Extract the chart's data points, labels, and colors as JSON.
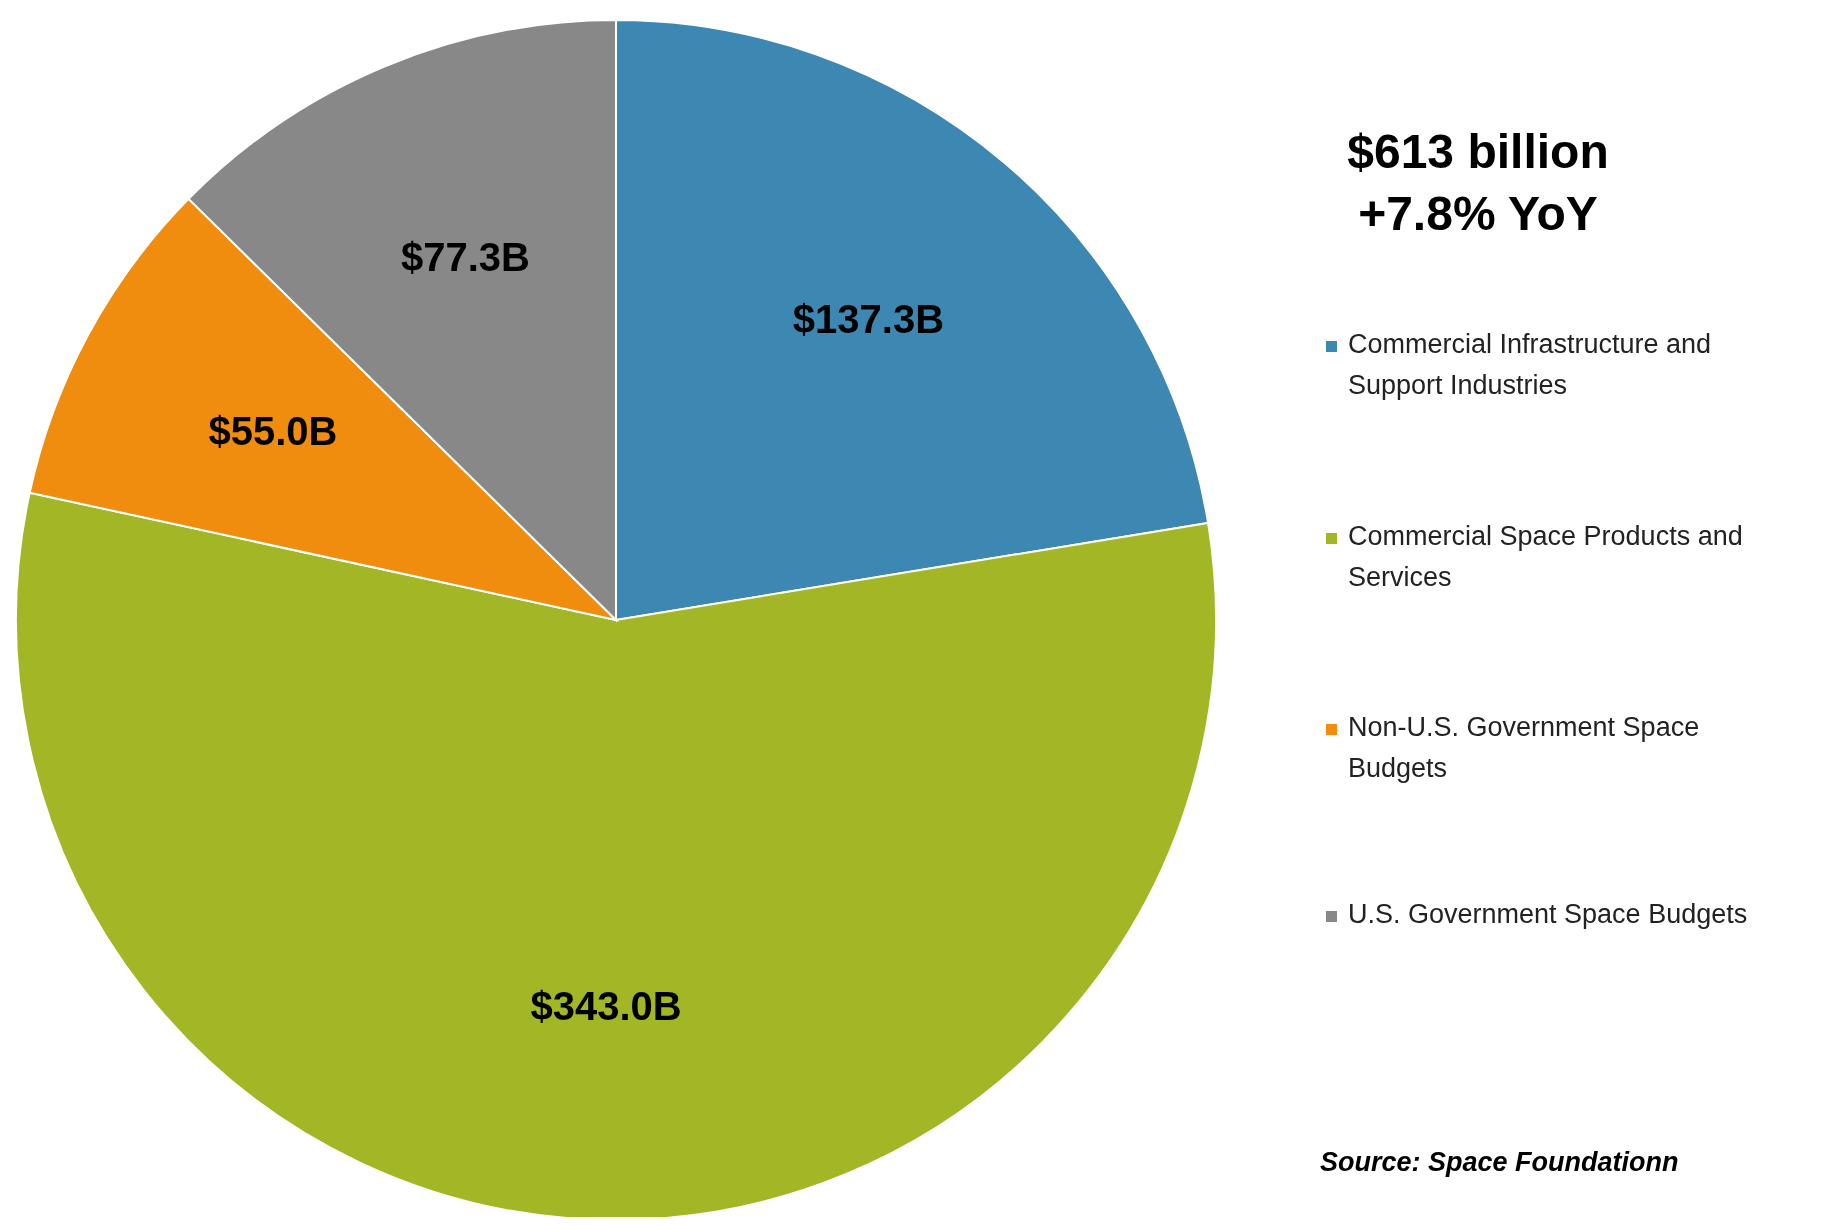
{
  "chart_data": {
    "type": "pie",
    "title": "$613 billion",
    "subtitle": "+7.8% YoY",
    "categories": [
      "Commercial Infrastructure and Support Industries",
      "Commercial Space Products and Services",
      "Non-U.S. Government Space Budgets",
      "U.S. Government Space Budgets"
    ],
    "values": [
      137.3,
      343.0,
      55.0,
      77.3
    ],
    "colors": [
      "#3d87b3",
      "#a3b626",
      "#f08c0e",
      "#888888"
    ],
    "value_labels": [
      "$137.3B",
      "$343.0B",
      "$55.0B",
      "$77.3B"
    ],
    "legend": "right",
    "annotations": [
      "Source: Space Foundationn"
    ]
  }
}
